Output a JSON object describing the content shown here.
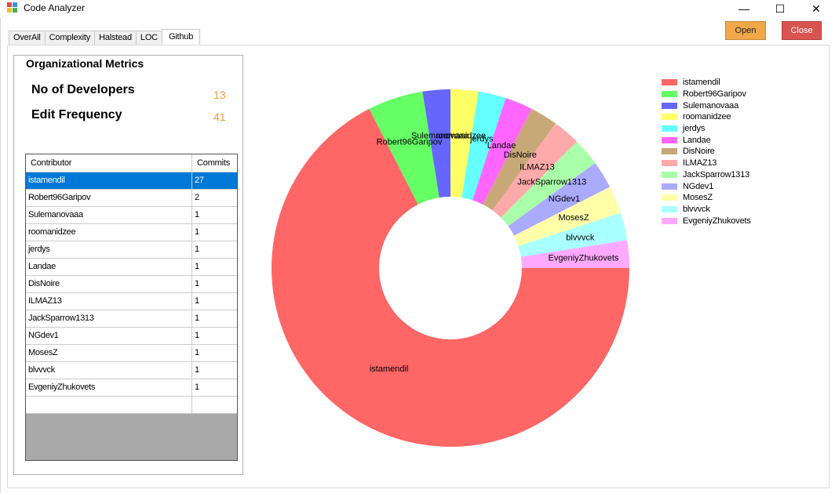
{
  "window": {
    "title": "Code Analyzer",
    "controls": {
      "minimize": "—",
      "maximize": "☐",
      "close": "✕"
    }
  },
  "tabs": [
    {
      "label": "OverAll"
    },
    {
      "label": "Complexity"
    },
    {
      "label": "Halstead"
    },
    {
      "label": "LOC"
    },
    {
      "label": "Github",
      "active": true
    }
  ],
  "buttons": {
    "open": "Open",
    "close": "Close"
  },
  "metrics": {
    "title": "Organizational Metrics",
    "developers_label": "No of Developers",
    "developers_value": "13",
    "edit_frequency_label": "Edit Frequency",
    "edit_frequency_value": "41"
  },
  "grid": {
    "headers": [
      "Contributor",
      "Commits"
    ],
    "selected_row": 0,
    "rows": [
      {
        "name": "istamendil",
        "commits": "27"
      },
      {
        "name": "Robert96Garipov",
        "commits": "2"
      },
      {
        "name": "Sulemanovaaa",
        "commits": "1"
      },
      {
        "name": "roomanidzee",
        "commits": "1"
      },
      {
        "name": "jerdys",
        "commits": "1"
      },
      {
        "name": "Landae",
        "commits": "1"
      },
      {
        "name": "DisNoire",
        "commits": "1"
      },
      {
        "name": "ILMAZ13",
        "commits": "1"
      },
      {
        "name": "JackSparrow1313",
        "commits": "1"
      },
      {
        "name": "NGdev1",
        "commits": "1"
      },
      {
        "name": "MosesZ",
        "commits": "1"
      },
      {
        "name": "blvvvck",
        "commits": "1"
      },
      {
        "name": "EvgeniyZhukovets",
        "commits": "1"
      }
    ]
  },
  "chart_data": {
    "type": "pie",
    "donut": true,
    "legend_position": "top-right",
    "categories": [
      "istamendil",
      "Robert96Garipov",
      "Sulemanovaaa",
      "roomanidzee",
      "jerdys",
      "Landae",
      "DisNoire",
      "ILMAZ13",
      "JackSparrow1313",
      "NGdev1",
      "MosesZ",
      "blvvvck",
      "EvgeniyZhukovets"
    ],
    "values": [
      27,
      2,
      1,
      1,
      1,
      1,
      1,
      1,
      1,
      1,
      1,
      1,
      1
    ],
    "colors": [
      "#ff6666",
      "#66ff66",
      "#6666ff",
      "#ffff66",
      "#66ffff",
      "#ff66ff",
      "#c8a878",
      "#ffaaaa",
      "#aaffaa",
      "#aaaaff",
      "#ffffaa",
      "#aaffff",
      "#ffaaff"
    ]
  }
}
